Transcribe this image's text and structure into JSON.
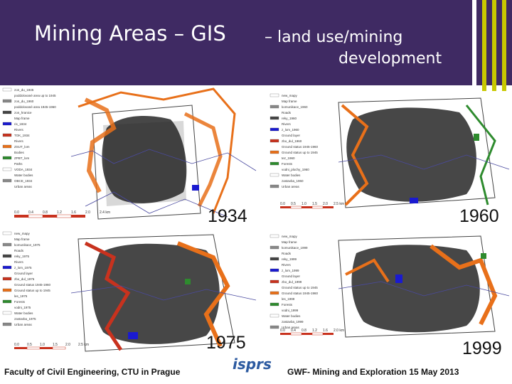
{
  "header": {
    "title_main": "Mining Areas – GIS",
    "title_sub": "– land use/mining",
    "title_sub2": "development"
  },
  "panels": [
    {
      "year": "1934",
      "legend": [
        "zon_du_1945",
        "poddolované area up to 1945",
        "zon_du_1960",
        "poddolované area 1945-1960",
        "zon_hranice",
        "Map frame",
        "ris_1934",
        "Rivers",
        "TOK_1934",
        "Rivers",
        "ZSUT_lom",
        "Bodies",
        "ZPBT_lom",
        "Paths",
        "VODA_1934",
        "Water bodies",
        "OBCE_1934",
        "Urban areas"
      ],
      "scale": [
        "0.0",
        "0.4",
        "0.8",
        "1.2",
        "1.6",
        "2.0",
        "2.4 km"
      ]
    },
    {
      "year": "1960",
      "legend": [
        "new_mapy",
        "Map frame",
        "komunikace_1960",
        "Roads",
        "reky_1960",
        "Rivers",
        "z_lom_1960",
        "Ground layer",
        "zbo_dul_1960",
        "Ground status 1945-1960",
        "Ground status up to 1945",
        "tez_1960",
        "Forests",
        "vodni_plochy_1960",
        "Water bodies",
        "zastavba_1960",
        "Urban areas"
      ],
      "scale": [
        "0.0",
        "0.5",
        "1.0",
        "1.5",
        "2.0",
        "2.5 km"
      ]
    },
    {
      "year": "1975",
      "legend": [
        "new_mapy",
        "Map frame",
        "komunikace_1975",
        "Roads",
        "reky_1975",
        "Rivers",
        "z_lom_1975",
        "Ground layer",
        "zbo_dul_1975",
        "Ground status 1945-1960",
        "Ground status up to 1945",
        "les_1975",
        "Forests",
        "vodni_1975",
        "Water bodies",
        "zastavba_1975",
        "Urban areas"
      ],
      "scale": [
        "0.0",
        "0.5",
        "1.0",
        "1.5",
        "2.0",
        "2.5 km"
      ]
    },
    {
      "year": "1999",
      "legend": [
        "new_mapy",
        "Map frame",
        "komunikace_1999",
        "Roads",
        "reky_1999",
        "Rivers",
        "z_lom_1999",
        "Ground layer",
        "zbo_dul_1999",
        "Ground status up to 1945",
        "Ground status 1945-1960",
        "les_1999",
        "Forests",
        "vodni_1999",
        "Water bodies",
        "zastavba_1999",
        "Urban areas"
      ],
      "scale": [
        "0.0",
        "0.4",
        "0.8",
        "1.2",
        "1.6",
        "2.0 km"
      ]
    }
  ],
  "footer": {
    "left": "Faculty of Civil Engineering, CTU in Prague",
    "logo": "isprs",
    "right": "GWF- Mining and Exploration 15 May 2013"
  },
  "colors": {
    "header": "#3f2a63",
    "stripes": [
      "#ffffff",
      "#c8c800",
      "#3f2a63",
      "#c8c800"
    ],
    "mining_orange": "#e8701a",
    "urban_red": "#c8321e",
    "forest_green": "#2e8b2e",
    "water_blue": "#1a1ad0",
    "road_line": "#4a4aa0"
  }
}
